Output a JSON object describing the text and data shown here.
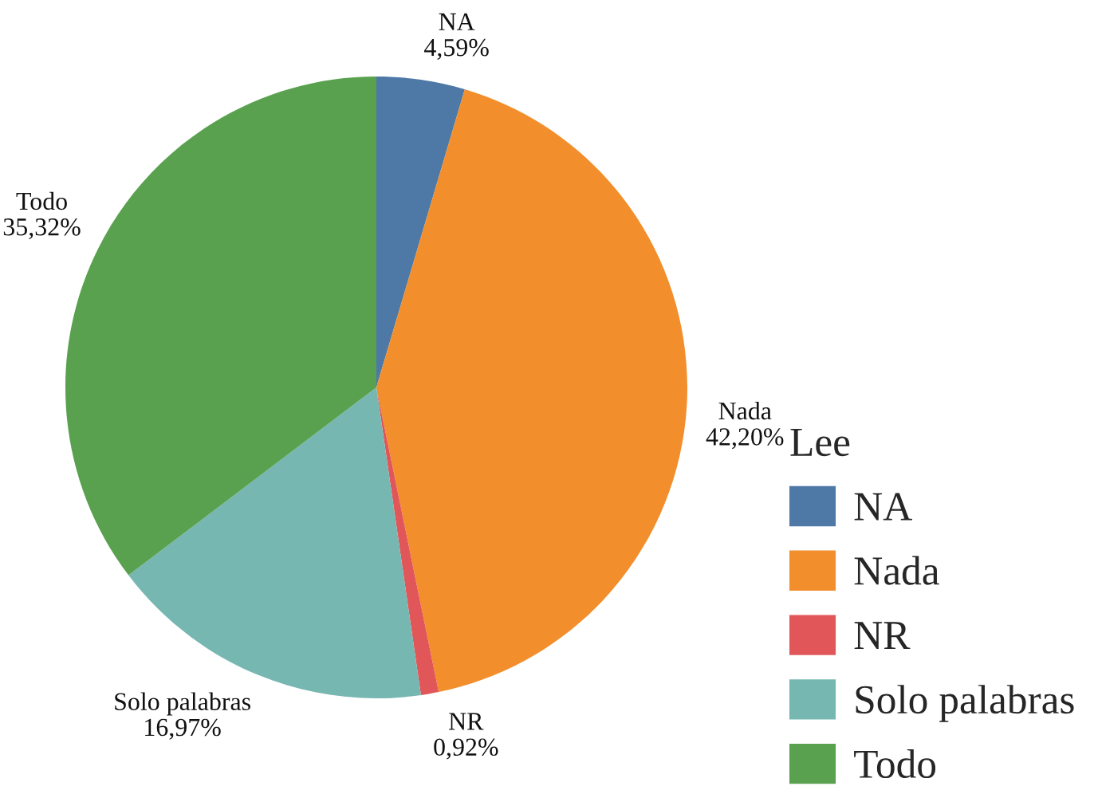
{
  "chart_data": {
    "type": "pie",
    "categories": [
      "NA",
      "Nada",
      "NR",
      "Solo palabras",
      "Todo"
    ],
    "values": [
      4.59,
      42.2,
      0.92,
      16.97,
      35.32
    ],
    "colors": [
      "#4e79a7",
      "#f28e2b",
      "#e15759",
      "#76b7b2",
      "#59a14f"
    ],
    "value_labels": [
      "4,59%",
      "42,20%",
      "0,92%",
      "16,97%",
      "35,32%"
    ],
    "legend_title": "Lee",
    "legend": "right"
  }
}
